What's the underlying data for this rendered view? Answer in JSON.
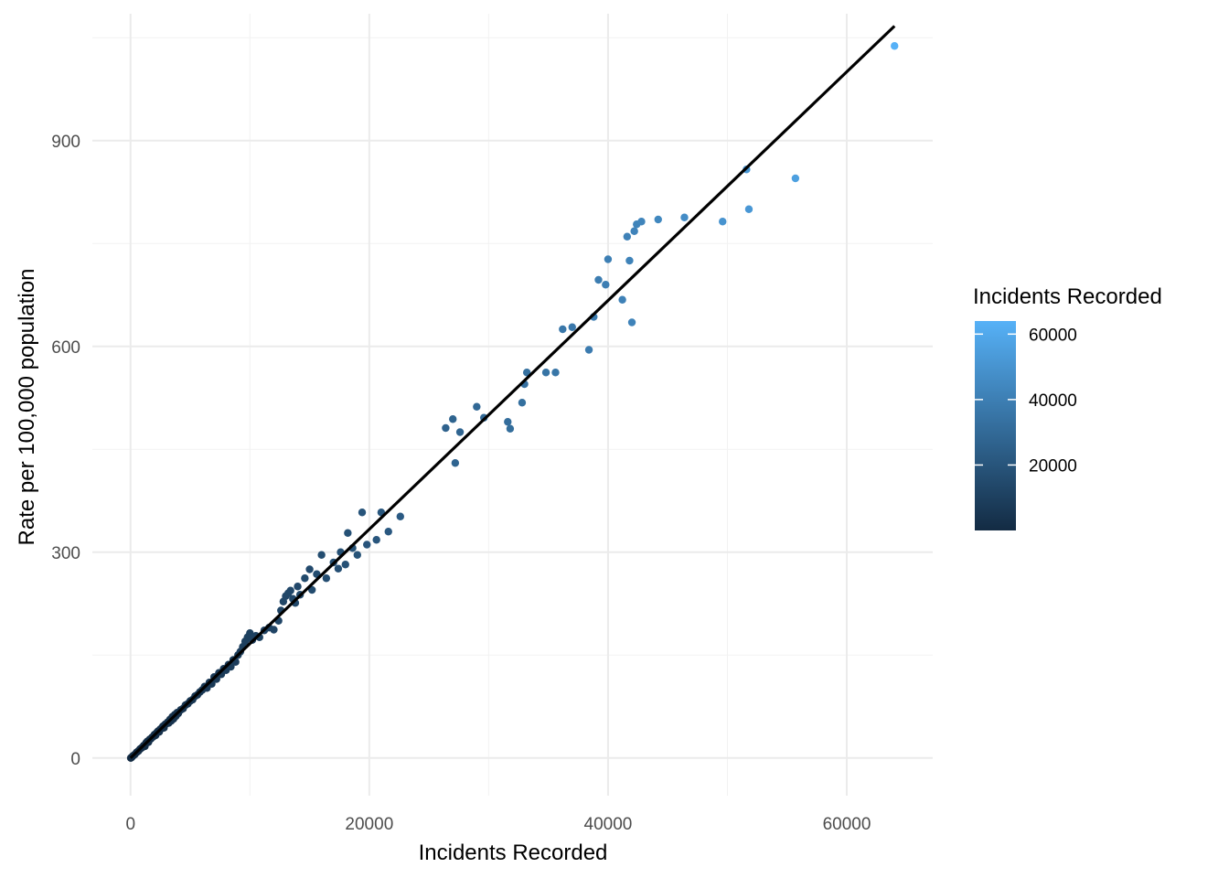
{
  "chart_data": {
    "type": "scatter",
    "title": "",
    "xlabel": "Incidents Recorded",
    "ylabel": "Rate per 100,000 population",
    "xlim": [
      -3200,
      67200
    ],
    "ylim": [
      -55,
      1085
    ],
    "x_ticks": [
      0,
      20000,
      40000,
      60000
    ],
    "x_tick_labels": [
      "0",
      "20000",
      "40000",
      "60000"
    ],
    "y_ticks": [
      0,
      300,
      600,
      900
    ],
    "y_tick_labels": [
      "0",
      "300",
      "600",
      "900"
    ],
    "x_minor_ticks": [
      10000,
      30000,
      50000
    ],
    "y_minor_ticks": [
      150,
      450,
      750,
      1050
    ],
    "grid": true,
    "legend": {
      "title": "Incidents Recorded",
      "placement": "right",
      "type": "colorbar",
      "range": [
        0,
        64000
      ],
      "ticks": [
        20000,
        40000,
        60000
      ],
      "tick_labels": [
        "20000",
        "40000",
        "60000"
      ],
      "low_color": "#132B43",
      "high_color": "#56B1F7"
    },
    "trend_line": {
      "x": [
        0,
        64000
      ],
      "y": [
        0,
        1067
      ],
      "color": "#000000"
    },
    "points": [
      [
        20,
        0
      ],
      [
        100,
        1
      ],
      [
        200,
        3
      ],
      [
        350,
        5
      ],
      [
        500,
        8
      ],
      [
        650,
        10
      ],
      [
        800,
        13
      ],
      [
        950,
        15
      ],
      [
        1100,
        18
      ],
      [
        1200,
        17
      ],
      [
        1300,
        22
      ],
      [
        1400,
        24
      ],
      [
        1500,
        23
      ],
      [
        1600,
        27
      ],
      [
        1700,
        28
      ],
      [
        1800,
        30
      ],
      [
        1900,
        31
      ],
      [
        2000,
        34
      ],
      [
        2100,
        33
      ],
      [
        2200,
        37
      ],
      [
        2300,
        39
      ],
      [
        2400,
        38
      ],
      [
        2500,
        42
      ],
      [
        2600,
        43
      ],
      [
        2700,
        46
      ],
      [
        2800,
        44
      ],
      [
        2900,
        49
      ],
      [
        3000,
        50
      ],
      [
        3100,
        52
      ],
      [
        3200,
        51
      ],
      [
        3300,
        56
      ],
      [
        3400,
        54
      ],
      [
        3500,
        60
      ],
      [
        3600,
        57
      ],
      [
        3700,
        63
      ],
      [
        3800,
        61
      ],
      [
        3900,
        66
      ],
      [
        4000,
        65
      ],
      [
        4200,
        70
      ],
      [
        4400,
        72
      ],
      [
        4600,
        77
      ],
      [
        4800,
        79
      ],
      [
        5000,
        83
      ],
      [
        5200,
        85
      ],
      [
        5400,
        90
      ],
      [
        5600,
        92
      ],
      [
        5800,
        96
      ],
      [
        6000,
        99
      ],
      [
        6200,
        104
      ],
      [
        6400,
        102
      ],
      [
        6600,
        110
      ],
      [
        6800,
        108
      ],
      [
        7000,
        118
      ],
      [
        7200,
        115
      ],
      [
        7400,
        124
      ],
      [
        7600,
        122
      ],
      [
        7800,
        130
      ],
      [
        8000,
        128
      ],
      [
        8200,
        136
      ],
      [
        8400,
        133
      ],
      [
        8600,
        143
      ],
      [
        8800,
        140
      ],
      [
        9000,
        150
      ],
      [
        9200,
        155
      ],
      [
        9400,
        162
      ],
      [
        9600,
        170
      ],
      [
        9800,
        176
      ],
      [
        10000,
        182
      ],
      [
        10200,
        172
      ],
      [
        10500,
        178
      ],
      [
        10800,
        176
      ],
      [
        11200,
        186
      ],
      [
        11600,
        190
      ],
      [
        12000,
        187
      ],
      [
        12400,
        200
      ],
      [
        12600,
        215
      ],
      [
        12800,
        228
      ],
      [
        13000,
        236
      ],
      [
        13200,
        240
      ],
      [
        13400,
        244
      ],
      [
        13600,
        232
      ],
      [
        13800,
        226
      ],
      [
        14000,
        250
      ],
      [
        14200,
        238
      ],
      [
        14600,
        262
      ],
      [
        15000,
        275
      ],
      [
        15200,
        245
      ],
      [
        15600,
        268
      ],
      [
        16000,
        296
      ],
      [
        16400,
        262
      ],
      [
        17000,
        285
      ],
      [
        17400,
        276
      ],
      [
        17600,
        300
      ],
      [
        18000,
        282
      ],
      [
        18200,
        328
      ],
      [
        18600,
        306
      ],
      [
        19000,
        296
      ],
      [
        19400,
        358
      ],
      [
        19800,
        311
      ],
      [
        20600,
        318
      ],
      [
        21000,
        358
      ],
      [
        21600,
        330
      ],
      [
        22600,
        352
      ],
      [
        26400,
        481
      ],
      [
        27000,
        494
      ],
      [
        27200,
        430
      ],
      [
        27600,
        475
      ],
      [
        29000,
        512
      ],
      [
        29600,
        496
      ],
      [
        31600,
        490
      ],
      [
        31800,
        480
      ],
      [
        32800,
        518
      ],
      [
        33000,
        545
      ],
      [
        33200,
        562
      ],
      [
        34800,
        562
      ],
      [
        35600,
        562
      ],
      [
        36200,
        625
      ],
      [
        37000,
        628
      ],
      [
        38400,
        595
      ],
      [
        38800,
        643
      ],
      [
        39200,
        697
      ],
      [
        39800,
        690
      ],
      [
        40000,
        727
      ],
      [
        41200,
        668
      ],
      [
        41600,
        760
      ],
      [
        41800,
        725
      ],
      [
        42000,
        635
      ],
      [
        42200,
        768
      ],
      [
        42400,
        778
      ],
      [
        42800,
        782
      ],
      [
        44200,
        785
      ],
      [
        46400,
        788
      ],
      [
        49600,
        782
      ],
      [
        51600,
        858
      ],
      [
        51800,
        800
      ],
      [
        55700,
        845
      ],
      [
        64000,
        1038
      ]
    ]
  }
}
